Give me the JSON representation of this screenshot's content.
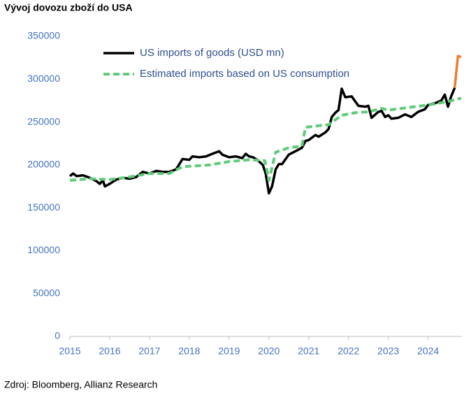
{
  "chart_data": {
    "type": "line",
    "title": "Vývoj dovozu zboží do USA",
    "source": "Zdroj: Bloomberg, Allianz Research",
    "xlim": [
      2015,
      2024.85
    ],
    "xticks": [
      2015,
      2016,
      2017,
      2018,
      2019,
      2020,
      2021,
      2022,
      2023,
      2024
    ],
    "ylim": [
      0,
      350000
    ],
    "yticks": [
      0,
      50000,
      100000,
      150000,
      200000,
      250000,
      300000,
      350000
    ],
    "series": [
      {
        "name": "US imports of goods (USD mn)",
        "color": "#000000",
        "dash": false,
        "x": [
          2015.0,
          2015.08,
          2015.17,
          2015.33,
          2015.5,
          2015.67,
          2015.75,
          2015.83,
          2015.88,
          2016.0,
          2016.17,
          2016.33,
          2016.5,
          2016.67,
          2016.83,
          2017.0,
          2017.17,
          2017.33,
          2017.5,
          2017.67,
          2017.83,
          2018.0,
          2018.08,
          2018.25,
          2018.42,
          2018.58,
          2018.75,
          2018.83,
          2019.0,
          2019.17,
          2019.33,
          2019.42,
          2019.5,
          2019.6,
          2019.7,
          2019.78,
          2019.85,
          2019.92,
          2020.0,
          2020.08,
          2020.17,
          2020.25,
          2020.33,
          2020.5,
          2020.67,
          2020.83,
          2020.92,
          2021.0,
          2021.17,
          2021.25,
          2021.42,
          2021.5,
          2021.58,
          2021.67,
          2021.75,
          2021.83,
          2021.92,
          2022.08,
          2022.25,
          2022.42,
          2022.5,
          2022.58,
          2022.75,
          2022.83,
          2022.92,
          2023.0,
          2023.08,
          2023.25,
          2023.42,
          2023.58,
          2023.75,
          2023.92,
          2024.0,
          2024.17,
          2024.33,
          2024.42,
          2024.5,
          2024.58,
          2024.67
        ],
        "values": [
          187000,
          190000,
          187000,
          188000,
          185000,
          181000,
          178000,
          182000,
          175000,
          178000,
          183000,
          185000,
          184000,
          186000,
          192000,
          190000,
          193000,
          192000,
          192000,
          195000,
          207000,
          206000,
          210000,
          209000,
          210000,
          213000,
          216000,
          212000,
          209000,
          210000,
          208000,
          213000,
          210000,
          209000,
          206000,
          203000,
          200000,
          190000,
          167000,
          175000,
          195000,
          201000,
          201000,
          212000,
          216000,
          220000,
          228000,
          229000,
          235000,
          233000,
          238000,
          242000,
          256000,
          261000,
          264000,
          289000,
          279000,
          280000,
          269000,
          268000,
          269000,
          255000,
          262000,
          263000,
          256000,
          258000,
          254000,
          255000,
          259000,
          256000,
          262000,
          265000,
          270000,
          272000,
          275000,
          282000,
          268000,
          280000,
          290000
        ]
      },
      {
        "name": "Estimated imports based on US consumption",
        "color": "#5fcc7a",
        "dash": true,
        "x": [
          2015.0,
          2015.5,
          2016.0,
          2016.5,
          2017.0,
          2017.5,
          2017.83,
          2018.5,
          2019.0,
          2019.5,
          2019.9,
          2020.0,
          2020.17,
          2020.5,
          2020.83,
          2020.92,
          2021.5,
          2021.83,
          2022.17,
          2022.5,
          2022.83,
          2023.0,
          2023.5,
          2024.0,
          2024.5,
          2024.83
        ],
        "values": [
          182000,
          184000,
          183000,
          186000,
          190000,
          190000,
          198000,
          200000,
          204000,
          206000,
          205000,
          182000,
          215000,
          220000,
          222000,
          244000,
          247000,
          258000,
          261000,
          262000,
          266000,
          264000,
          267000,
          270000,
          274000,
          278000
        ]
      },
      {
        "color": "#ed7d31",
        "dash": false,
        "x": [
          2024.67,
          2024.75,
          2024.83
        ],
        "values": [
          290000,
          327000,
          326000
        ]
      }
    ]
  }
}
